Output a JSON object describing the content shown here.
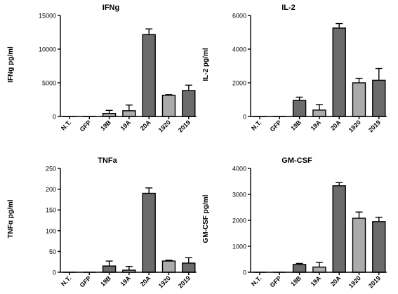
{
  "chart_data": [
    {
      "type": "bar",
      "title": "IFNg",
      "ylabel": "IFNg pg/ml",
      "xlabel": "",
      "categories": [
        "N.T.",
        "GFP",
        "19B",
        "19A",
        "20A",
        "1920",
        "2019"
      ],
      "values": [
        0,
        0,
        450,
        850,
        12150,
        3150,
        3850
      ],
      "errors": [
        0,
        0,
        450,
        850,
        850,
        100,
        800
      ],
      "yticks": [
        0,
        5000,
        10000,
        15000
      ],
      "ylim": [
        0,
        15000
      ],
      "colors": [
        "#ffffff",
        "#ffffff",
        "#ababab",
        "#ababab",
        "#6b6b6b",
        "#ababab",
        "#6b6b6b"
      ]
    },
    {
      "type": "bar",
      "title": "IL-2",
      "ylabel": "IL-2 pg/ml",
      "xlabel": "",
      "categories": [
        "N.T.",
        "GFP",
        "19B",
        "19A",
        "20A",
        "1920",
        "2019"
      ],
      "values": [
        0,
        0,
        950,
        380,
        5250,
        2000,
        2150
      ],
      "errors": [
        0,
        0,
        200,
        330,
        270,
        270,
        700
      ],
      "yticks": [
        0,
        2000,
        4000,
        6000
      ],
      "ylim": [
        0,
        6000
      ],
      "colors": [
        "#ffffff",
        "#ffffff",
        "#6b6b6b",
        "#ababab",
        "#6b6b6b",
        "#ababab",
        "#6b6b6b"
      ]
    },
    {
      "type": "bar",
      "title": "TNFa",
      "ylabel": "TNFα pg/ml",
      "xlabel": "",
      "categories": [
        "N.T.",
        "GFP",
        "19B",
        "19A",
        "20A",
        "1920",
        "2019"
      ],
      "values": [
        0,
        0,
        15,
        5,
        190,
        27,
        22
      ],
      "errors": [
        0,
        0,
        12,
        9,
        13,
        2,
        13
      ],
      "yticks": [
        0,
        50,
        100,
        150,
        200,
        250
      ],
      "ylim": [
        0,
        250
      ],
      "colors": [
        "#ffffff",
        "#ffffff",
        "#6b6b6b",
        "#ababab",
        "#6b6b6b",
        "#ababab",
        "#6b6b6b"
      ]
    },
    {
      "type": "bar",
      "title": "GM-CSF",
      "ylabel": "GM-CSF pg/ml",
      "xlabel": "",
      "categories": [
        "N.T.",
        "GFP",
        "19B",
        "19A",
        "20A",
        "1920",
        "2019"
      ],
      "values": [
        0,
        0,
        300,
        200,
        3330,
        2080,
        1950
      ],
      "errors": [
        0,
        0,
        40,
        180,
        120,
        240,
        170
      ],
      "yticks": [
        0,
        1000,
        2000,
        3000,
        4000
      ],
      "ylim": [
        0,
        4000
      ],
      "colors": [
        "#ffffff",
        "#ffffff",
        "#6b6b6b",
        "#ababab",
        "#6b6b6b",
        "#ababab",
        "#6b6b6b"
      ]
    }
  ]
}
